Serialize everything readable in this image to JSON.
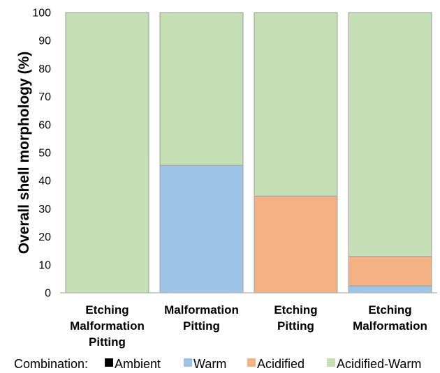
{
  "chart_data": {
    "type": "bar",
    "stacked": true,
    "ylabel": "Overall shell morphology (%)",
    "xlabel": "",
    "ylim": [
      0,
      100
    ],
    "yticks": [
      0,
      10,
      20,
      30,
      40,
      50,
      60,
      70,
      80,
      90,
      100
    ],
    "grid": false,
    "legend_position": "bottom",
    "legend_title": "Combination:",
    "categories": [
      [
        "Etching",
        "Malformation",
        "Pitting"
      ],
      [
        "Malformation",
        "Pitting"
      ],
      [
        "Etching",
        "Pitting"
      ],
      [
        "Etching",
        "Malformation"
      ]
    ],
    "series": [
      {
        "name": "Ambient",
        "color": "#000000",
        "values": [
          0,
          0,
          0,
          0
        ]
      },
      {
        "name": "Warm",
        "color": "#9dc3e6",
        "values": [
          0,
          45.5,
          0,
          2.5
        ]
      },
      {
        "name": "Acidified",
        "color": "#f4b183",
        "values": [
          0,
          0,
          34.5,
          10.5
        ]
      },
      {
        "name": "Acidified-Warm",
        "color": "#c5e0b4",
        "values": [
          100,
          54.5,
          65.5,
          87
        ]
      }
    ]
  }
}
